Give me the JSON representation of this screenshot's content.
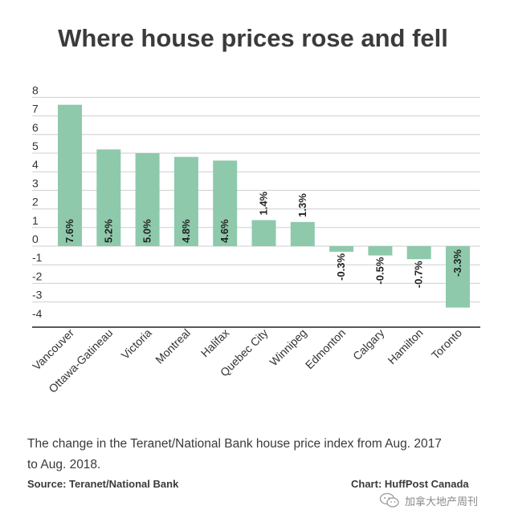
{
  "chart_data": {
    "type": "bar",
    "title": "Where house prices rose and fell",
    "categories": [
      "Vancouver",
      "Ottawa-Gatineau",
      "Victoria",
      "Montreal",
      "Halifax",
      "Quebec City",
      "Winnipeg",
      "Edmonton",
      "Calgary",
      "Hamilton",
      "Toronto"
    ],
    "values": [
      7.6,
      5.2,
      5.0,
      4.8,
      4.6,
      1.4,
      1.3,
      -0.3,
      -0.5,
      -0.7,
      -3.3
    ],
    "value_labels": [
      "7.6%",
      "5.2%",
      "5.0%",
      "4.8%",
      "4.6%",
      "1.4%",
      "1.3%",
      "-0.3%",
      "-0.5%",
      "-0.7%",
      "-3.3%"
    ],
    "y_ticks": [
      8,
      7,
      6,
      5,
      4,
      3,
      2,
      1,
      0,
      -1,
      -2,
      -3,
      -4
    ],
    "ylim": [
      -4.4,
      8.4
    ],
    "xlabel": "",
    "ylabel": "",
    "grid": true,
    "bar_color": "#8ec9ac"
  },
  "caption": "The change in the Teranet/National Bank house price index from Aug. 2017 to Aug. 2018.",
  "source": "Source: Teranet/National Bank",
  "credit": "Chart: HuffPost Canada",
  "watermark": {
    "text": "加拿大地产周刊",
    "icon": "wechat-icon"
  }
}
